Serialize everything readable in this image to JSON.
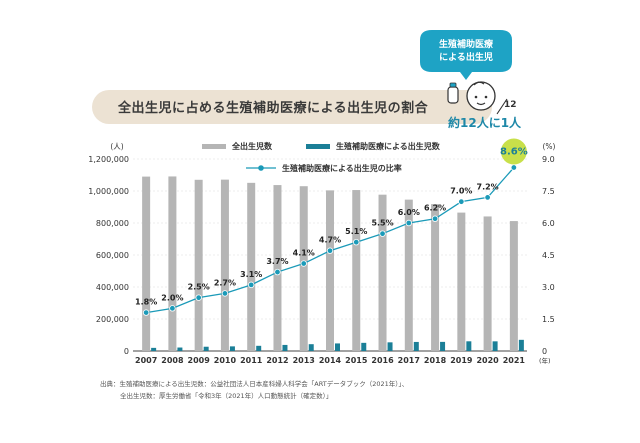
{
  "header": {
    "title": "全出生児に占める生殖補助医療による出生児の割合",
    "badge_line1": "生殖補助医療",
    "badge_line2": "による出生児",
    "ratio_denominator": "12",
    "ratio_text": "約12人に1人"
  },
  "source": {
    "line1": "出典：生殖補助医療による出生児数：公益社団法人日本産科婦人科学会「ARTデータブック（2021年）」、",
    "line2": "全出生児数：厚生労働省「令和3年（2021年）人口動態統計（確定数）」"
  },
  "colors": {
    "total_bar": "#b5b5b5",
    "art_bar": "#1b7f97",
    "line": "#1b9ab8",
    "highlight": "#c8e04a",
    "title_bg": "#ece2d3",
    "badge": "#1ea3c5"
  },
  "chart_data": {
    "type": "bar",
    "categories": [
      "2007",
      "2008",
      "2009",
      "2010",
      "2011",
      "2012",
      "2013",
      "2014",
      "2015",
      "2016",
      "2017",
      "2018",
      "2019",
      "2020",
      "2021"
    ],
    "x_unit": "(年)",
    "y_left_unit": "(人)",
    "y_right_unit": "(%)",
    "y_left_range": [
      0,
      1200000
    ],
    "y_left_ticks": [
      "0",
      "200,000",
      "400,000",
      "600,000",
      "800,000",
      "1,000,000",
      "1,200,000"
    ],
    "y_right_range": [
      0,
      9.0
    ],
    "y_right_ticks": [
      "0",
      "1.5",
      "3.0",
      "4.5",
      "6.0",
      "7.5",
      "9.0"
    ],
    "legend_position": "top",
    "series": [
      {
        "name": "全出生児数",
        "axis": "left",
        "type": "bar",
        "values": [
          1090000,
          1091000,
          1070000,
          1071000,
          1051000,
          1037000,
          1030000,
          1004000,
          1006000,
          977000,
          946000,
          918000,
          865000,
          841000,
          812000
        ]
      },
      {
        "name": "生殖補助医療による出生児数",
        "axis": "left",
        "type": "bar",
        "values": [
          19595,
          21704,
          26680,
          28945,
          32426,
          37953,
          42554,
          47322,
          51001,
          54110,
          56617,
          56979,
          60598,
          60381,
          69797
        ]
      },
      {
        "name": "生殖補助医療による出生児の比率",
        "axis": "right",
        "type": "line",
        "values": [
          1.8,
          2.0,
          2.5,
          2.7,
          3.1,
          3.7,
          4.1,
          4.7,
          5.1,
          5.5,
          6.0,
          6.2,
          7.0,
          7.2,
          8.6
        ],
        "labels": [
          "1.8%",
          "2.0%",
          "2.5%",
          "2.7%",
          "3.1%",
          "3.7%",
          "4.1%",
          "4.7%",
          "5.1%",
          "5.5%",
          "6.0%",
          "6.2%",
          "7.0%",
          "7.2%",
          "8.6%"
        ]
      }
    ]
  }
}
